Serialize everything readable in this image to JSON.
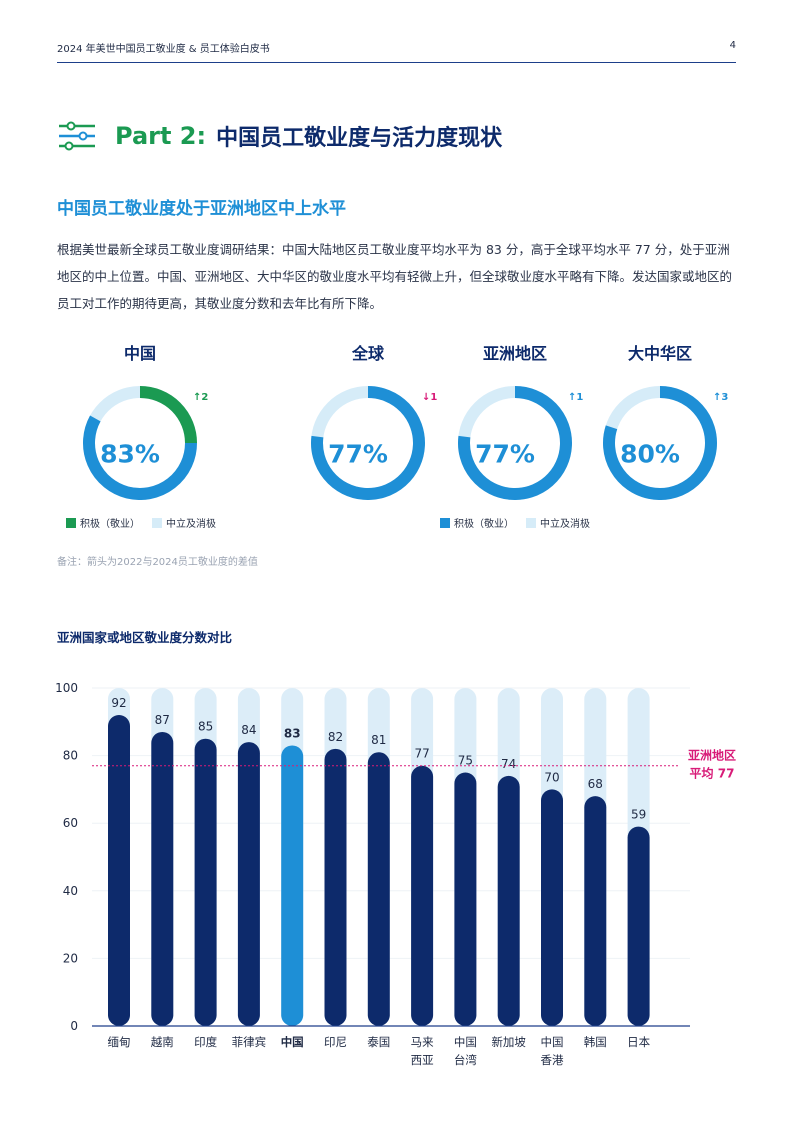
{
  "header": {
    "doc_title": "2024 年美世中国员工敬业度 & 员工体验白皮书",
    "page_number": "4"
  },
  "section": {
    "part_label": "Part 2:",
    "part_title": "中国员工敬业度与活力度现状",
    "subtitle": "中国员工敬业度处于亚洲地区中上水平",
    "paragraph": "根据美世最新全球员工敬业度调研结果：中国大陆地区员工敬业度平均水平为 83 分，高于全球平均水平 77 分，处于亚洲地区的中上位置。中国、亚洲地区、大中华区的敬业度水平均有轻微上升，但全球敬业度水平略有下降。发达国家或地区的员工对工作的期待更高，其敬业度分数和去年比有所下降。"
  },
  "donuts": [
    {
      "name": "中国",
      "pct_label": "83%",
      "value": 83,
      "change": "2",
      "direction": "up",
      "arc_color": "#1b9a52"
    },
    {
      "name": "全球",
      "pct_label": "77%",
      "value": 77,
      "change": "1",
      "direction": "down",
      "arc_color": "#1e8fd6"
    },
    {
      "name": "亚洲地区",
      "pct_label": "77%",
      "value": 77,
      "change": "1",
      "direction": "up",
      "arc_color": "#1e8fd6"
    },
    {
      "name": "大中华区",
      "pct_label": "80%",
      "value": 80,
      "change": "3",
      "direction": "up",
      "arc_color": "#1e8fd6"
    }
  ],
  "legend_left": {
    "positive": "积极（敬业）",
    "neutral": "中立及消极"
  },
  "legend_right": {
    "positive": "积极（敬业）",
    "neutral": "中立及消极"
  },
  "note": "备注：箭头为2022与2024员工敬业度的差值",
  "colors": {
    "navy": "#0d2a6b",
    "blue": "#1e8fd6",
    "green": "#1b9a52",
    "light_blue": "#d6ecf8",
    "pink": "#d81b78"
  },
  "chart_data": {
    "type": "bar",
    "title": "亚洲国家或地区敬业度分数对比",
    "categories": [
      "缅甸",
      "越南",
      "印度",
      "菲律宾",
      "中国",
      "印尼",
      "泰国",
      "马来\n西亚",
      "中国\n台湾",
      "新加坡",
      "中国\n香港",
      "韩国",
      "日本"
    ],
    "values": [
      92,
      87,
      85,
      84,
      83,
      82,
      81,
      77,
      75,
      74,
      70,
      68,
      59
    ],
    "highlight": "中国",
    "ylim": [
      0,
      100
    ],
    "yticks": [
      0,
      20,
      40,
      60,
      80,
      100
    ],
    "reference_line": {
      "value": 77,
      "label_line1": "亚洲地区",
      "label_line2": "平均 77"
    },
    "grid": true
  }
}
